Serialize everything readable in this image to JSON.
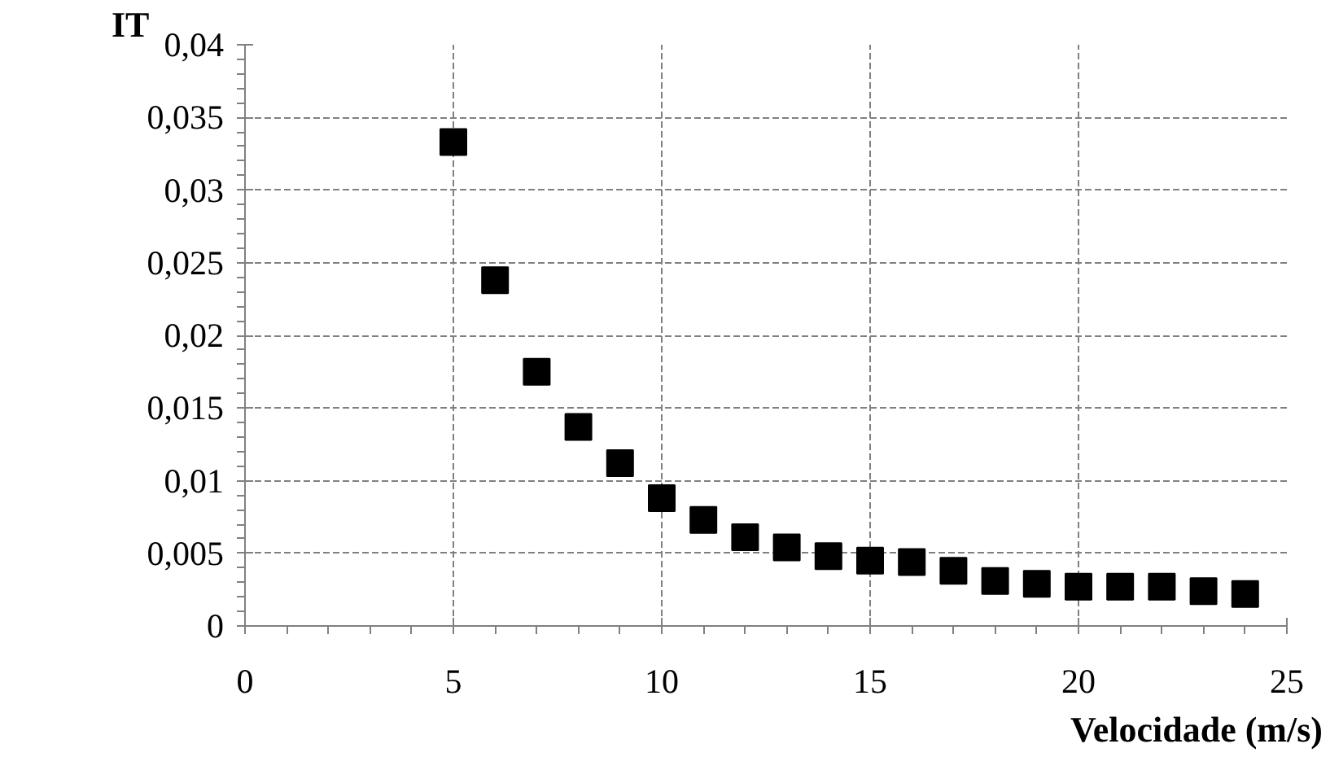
{
  "chart_data": {
    "type": "scatter",
    "xlabel": "Velocidade (m/s)",
    "ylabel": "IT",
    "x": [
      5,
      6,
      7,
      8,
      9,
      10,
      11,
      12,
      13,
      14,
      15,
      16,
      17,
      18,
      19,
      20,
      21,
      22,
      23,
      24
    ],
    "series": [
      {
        "color": "#000000",
        "values": [
          0.0333,
          0.0238,
          0.0175,
          0.0137,
          0.0112,
          0.0088,
          0.0073,
          0.0061,
          0.0054,
          0.0048,
          0.0045,
          0.0044,
          0.0038,
          0.0031,
          0.0029,
          0.0027,
          0.0027,
          0.0027,
          0.0024,
          0.0022
        ]
      }
    ],
    "xlim": [
      0,
      25
    ],
    "xticks": [
      0,
      5,
      10,
      15,
      20,
      25
    ],
    "ylim": [
      0,
      0.04
    ],
    "yticks": [
      {
        "value": 0,
        "label": "0"
      },
      {
        "value": 0.005,
        "label": "0,005"
      },
      {
        "value": 0.01,
        "label": "0,01"
      },
      {
        "value": 0.015,
        "label": "0,015"
      },
      {
        "value": 0.02,
        "label": "0,02"
      },
      {
        "value": 0.025,
        "label": "0,025"
      },
      {
        "value": 0.03,
        "label": "0,03"
      },
      {
        "value": 0.035,
        "label": "0,035"
      },
      {
        "value": 0.04,
        "label": "0,04"
      }
    ],
    "grid": true,
    "marker": "square"
  }
}
